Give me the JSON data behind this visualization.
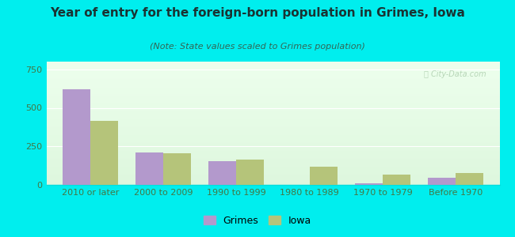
{
  "title": "Year of entry for the foreign-born population in Grimes, Iowa",
  "subtitle": "(Note: State values scaled to Grimes population)",
  "categories": [
    "2010 or later",
    "2000 to 2009",
    "1990 to 1999",
    "1980 to 1989",
    "1970 to 1979",
    "Before 1970"
  ],
  "grimes_values": [
    620,
    210,
    155,
    0,
    10,
    45
  ],
  "iowa_values": [
    415,
    205,
    165,
    120,
    65,
    75
  ],
  "grimes_color": "#b399cc",
  "iowa_color": "#b5c47a",
  "background_outer": "#00eeee",
  "ylim": [
    0,
    800
  ],
  "yticks": [
    0,
    250,
    500,
    750
  ],
  "bar_width": 0.38,
  "legend_labels": [
    "Grimes",
    "Iowa"
  ],
  "watermark": "Ⓢ City-Data.com",
  "title_fontsize": 11,
  "subtitle_fontsize": 8,
  "tick_fontsize": 8,
  "legend_fontsize": 9
}
